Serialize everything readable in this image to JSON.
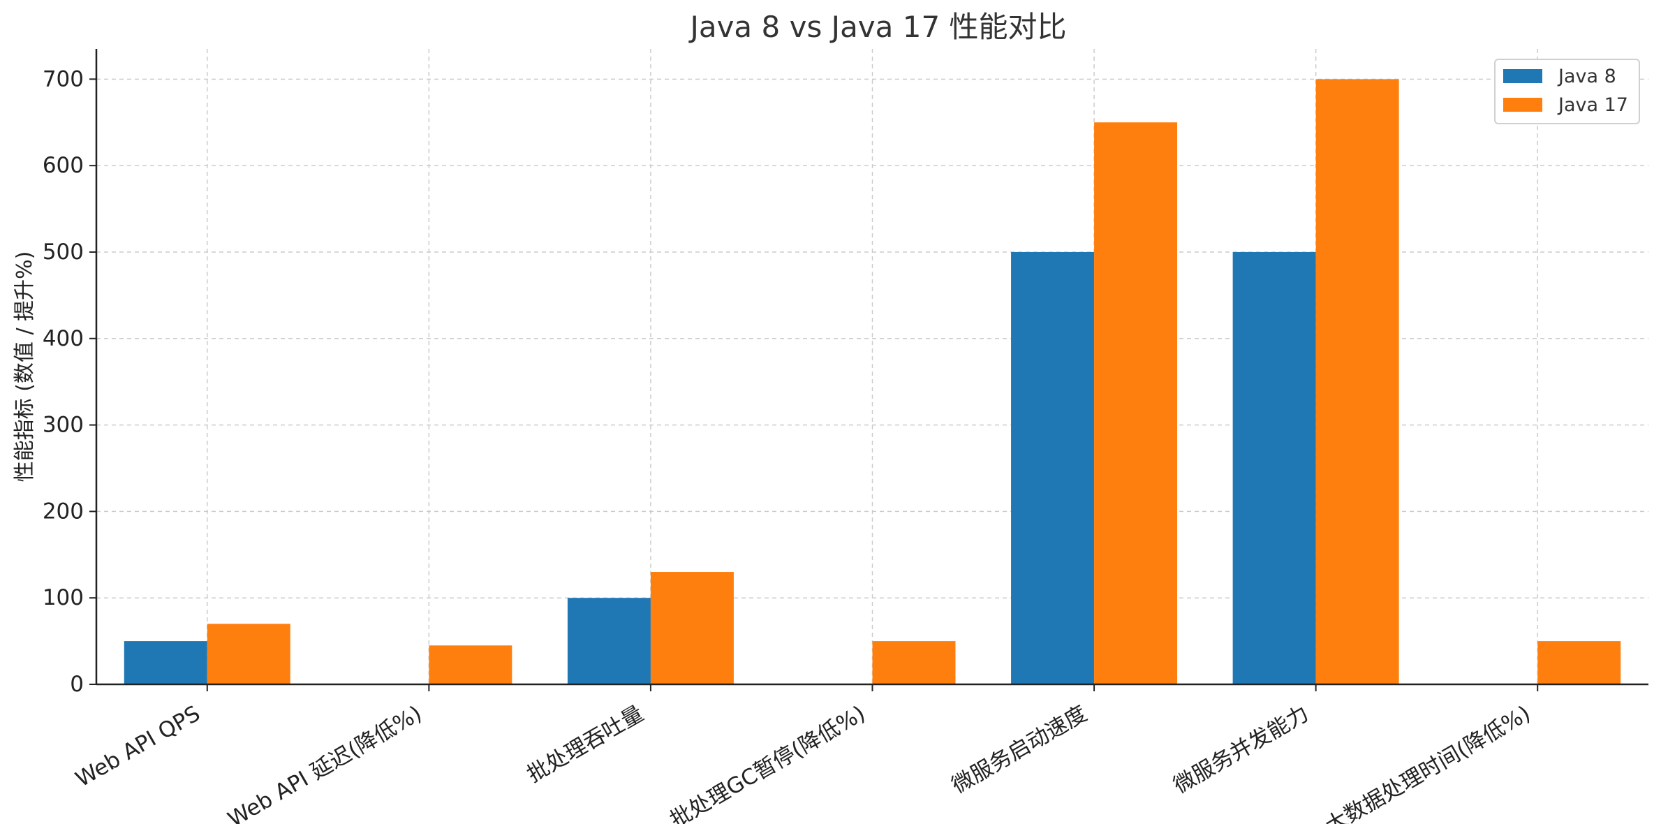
{
  "chart_data": {
    "type": "bar",
    "title": "Java 8 vs Java 17 性能对比",
    "xlabel": "",
    "ylabel": "性能指标 (数值 / 提升%)",
    "categories": [
      "Web API QPS",
      "Web API 延迟(降低%)",
      "批处理吞吐量",
      "批处理GC暂停(降低%)",
      "微服务启动速度",
      "微服务并发能力",
      "大数据处理时间(降低%)"
    ],
    "series": [
      {
        "name": "Java 8",
        "color": "#1f77b4",
        "values": [
          50,
          0,
          100,
          0,
          500,
          500,
          0
        ]
      },
      {
        "name": "Java 17",
        "color": "#ff7f0e",
        "values": [
          70,
          45,
          130,
          50,
          650,
          700,
          50
        ]
      }
    ],
    "ylim": [
      0,
      735
    ],
    "yticks": [
      0,
      100,
      200,
      300,
      400,
      500,
      600,
      700
    ],
    "grid": true,
    "legend_position": "top-right"
  }
}
